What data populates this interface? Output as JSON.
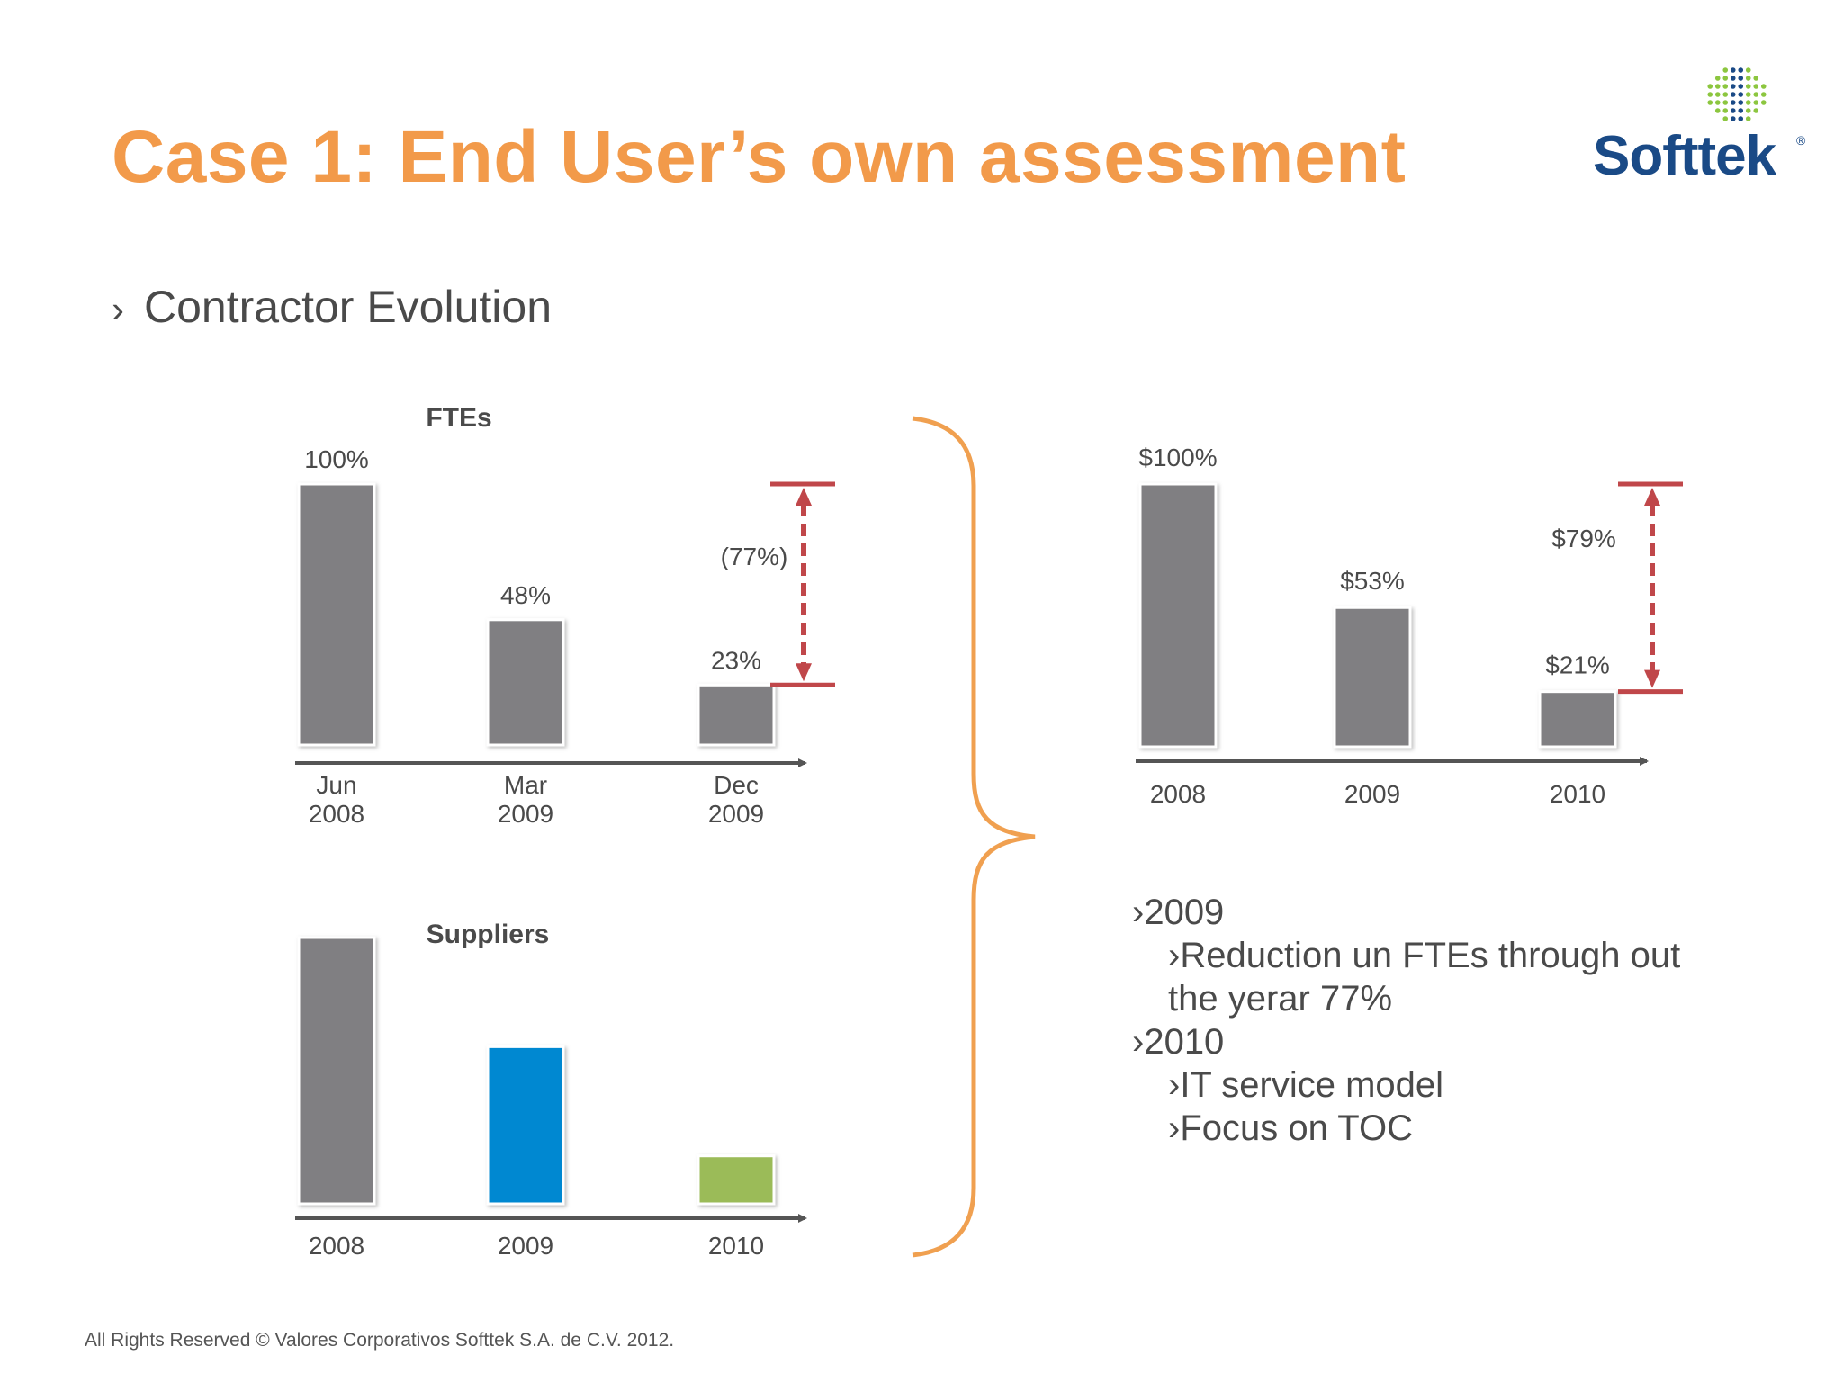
{
  "slide": {
    "title": "Case 1: End User’s own assessment",
    "subtitle_bullet": "›",
    "subtitle": "Contractor Evolution",
    "footer": "All Rights Reserved © Valores Corporativos Softtek S.A. de C.V. 2012.",
    "logo_text": "Softtek",
    "logo_mark": "®"
  },
  "colors": {
    "title": "#f29a4a",
    "bar_gray": "#807f82",
    "bar_blue": "#0088d1",
    "bar_green": "#9bbb59",
    "brace": "#f0a050",
    "indicator_red": "#c0474a",
    "logo_blue": "#1a4a86"
  },
  "chart_data": [
    {
      "type": "bar",
      "title": "FTEs",
      "categories": [
        [
          "Jun",
          "2008"
        ],
        [
          "Mar",
          "2009"
        ],
        [
          "Dec",
          "2009"
        ]
      ],
      "values": [
        100,
        48,
        23
      ],
      "data_labels": [
        "100%",
        "48%",
        "23%"
      ],
      "annotation": "(77%)",
      "ylim": [
        0,
        100
      ]
    },
    {
      "type": "bar",
      "title": "",
      "categories": [
        "2008",
        "2009",
        "2010"
      ],
      "values": [
        100,
        53,
        21
      ],
      "data_labels": [
        "$100%",
        "$53%",
        "$21%"
      ],
      "annotation": "$79%",
      "ylim": [
        0,
        100
      ]
    },
    {
      "type": "bar",
      "title": "Suppliers",
      "categories": [
        "2008",
        "2009",
        "2010"
      ],
      "values": [
        100,
        59,
        18
      ],
      "data_labels": [],
      "ylim": [
        0,
        100
      ]
    }
  ],
  "notes": [
    {
      "level": 1,
      "text": "›2009"
    },
    {
      "level": 2,
      "text": "›Reduction un FTEs through out the yerar 77%"
    },
    {
      "level": 1,
      "text": "›2010"
    },
    {
      "level": 2,
      "text": "›IT service model"
    },
    {
      "level": 2,
      "text": "›Focus on TOC"
    }
  ]
}
